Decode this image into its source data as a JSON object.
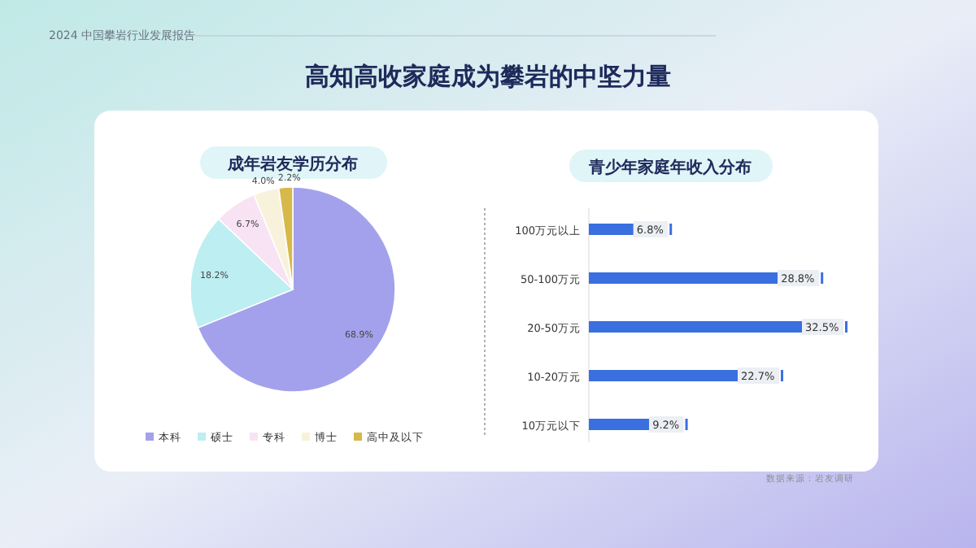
{
  "chart_data": [
    {
      "type": "pie",
      "title": "成年岩友学历分布",
      "annotations": [
        "2024 中国攀岩行业发展报告",
        "高知高收家庭成为攀岩的中坚力量"
      ],
      "categories": [
        "本科",
        "硕士",
        "专科",
        "博士",
        "高中及以下"
      ],
      "values": [
        68.9,
        18.2,
        6.7,
        4.0,
        2.2
      ],
      "value_labels": [
        "68.9%",
        "18.2%",
        "6.7%",
        "4.0%",
        "2.2%"
      ],
      "colors": [
        "#a4a1ec",
        "#bdeef2",
        "#f7e3f4",
        "#f8f2dc",
        "#d6b94a"
      ],
      "legend": "bottom"
    },
    {
      "type": "bar",
      "orientation": "horizontal",
      "title": "青少年家庭年收入分布",
      "annotations": [
        "数据来源：岩友调研"
      ],
      "categories": [
        "100万元以上",
        "50-100万元",
        "20-50万元",
        "10-20万元",
        "10万元以下"
      ],
      "values": [
        6.8,
        28.8,
        32.5,
        22.7,
        9.2
      ],
      "value_labels": [
        "6.8%",
        "28.8%",
        "32.5%",
        "22.7%",
        "9.2%"
      ],
      "color": "#3a6fe0"
    }
  ]
}
